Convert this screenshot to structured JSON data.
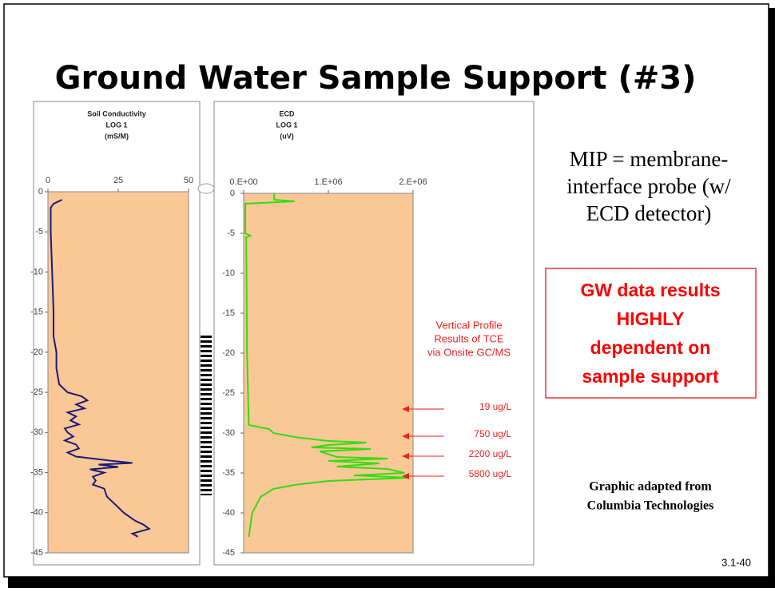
{
  "title": "Ground Water Sample Support (#3)",
  "mip_text": [
    "MIP = membrane-",
    "interface probe  (w/",
    "ECD detector)"
  ],
  "callout": [
    "GW data results",
    "HIGHLY",
    "dependent on",
    "sample support"
  ],
  "credit": [
    "Graphic adapted from",
    "Columbia Technologies"
  ],
  "slide_number": "3.1-40",
  "chart_data": [
    {
      "type": "line",
      "title_lines": [
        "Soil Conductivity",
        "LOG 1",
        "(mS/M)"
      ],
      "color": "#1a1a7a",
      "background": "#fac896",
      "xlim": [
        0,
        50
      ],
      "xticks": [
        0,
        25,
        50
      ],
      "ylim": [
        -45,
        0
      ],
      "yticks": [
        0,
        -5,
        -10,
        -15,
        -20,
        -25,
        -30,
        -35,
        -40,
        -45
      ],
      "x": [
        5,
        2,
        1,
        1,
        1.5,
        2,
        2,
        3,
        3,
        4,
        7,
        12,
        14,
        10,
        13,
        7,
        10,
        8,
        11,
        6,
        7,
        9,
        6,
        10,
        11,
        7,
        10,
        22,
        30,
        18,
        25,
        15,
        20,
        16,
        17,
        16,
        20,
        21,
        24,
        27,
        31,
        34,
        36,
        33,
        30,
        32
      ],
      "values": [
        -1,
        -1.5,
        -2,
        -5,
        -10,
        -15,
        -18,
        -20,
        -22,
        -24,
        -25,
        -25.5,
        -26,
        -26.5,
        -27,
        -27.5,
        -28,
        -28.5,
        -29,
        -29.5,
        -30,
        -30.5,
        -31,
        -31.5,
        -32,
        -32.5,
        -33,
        -33.5,
        -33.8,
        -34,
        -34.3,
        -34.6,
        -35,
        -35.5,
        -36,
        -36.5,
        -37,
        -38,
        -39,
        -40,
        -41,
        -41.5,
        -42,
        -42.3,
        -42.6,
        -43
      ]
    },
    {
      "type": "line",
      "title_lines": [
        "ECD",
        "LOG 1",
        "(uV)"
      ],
      "color": "#33dd11",
      "background": "#fac896",
      "xlim": [
        0,
        2000000
      ],
      "xticks": [
        {
          "value": 0,
          "label": "0.E+00"
        },
        {
          "value": 1000000,
          "label": "1.E+06"
        },
        {
          "value": 2000000,
          "label": "2.E+06"
        }
      ],
      "ylim": [
        -45,
        0
      ],
      "yticks": [
        0,
        -5,
        -10,
        -15,
        -20,
        -25,
        -30,
        -35,
        -40,
        -45
      ],
      "x": [
        360000,
        360000,
        600000,
        20000,
        20000,
        80000,
        30000,
        40000,
        60000,
        300000,
        350000,
        600000,
        1000000,
        1450000,
        1000000,
        800000,
        1500000,
        900000,
        1100000,
        1700000,
        1000000,
        1600000,
        1100000,
        1700000,
        1900000,
        1300000,
        1950000,
        1000000,
        600000,
        350000,
        200000,
        100000,
        60000
      ],
      "values": [
        0,
        -0.8,
        -1,
        -1.3,
        -5,
        -5.3,
        -5.5,
        -20,
        -29,
        -29.5,
        -30,
        -30.5,
        -31,
        -31.2,
        -31.5,
        -31.8,
        -32,
        -32.3,
        -33,
        -33.2,
        -33.5,
        -33.8,
        -34.2,
        -34.5,
        -35,
        -35.3,
        -35.6,
        -36,
        -36.5,
        -37,
        -38,
        -40,
        -43
      ],
      "annotation": [
        "Vertical Profile",
        "Results of TCE",
        "via Onsite GC/MS"
      ],
      "arrows": [
        {
          "label": "19 ug/L",
          "depth": -27
        },
        {
          "label": "750 ug/L",
          "depth": -30.4
        },
        {
          "label": "2200 ug/L",
          "depth": -32.9
        },
        {
          "label": "5800 ug/L",
          "depth": -35.4
        }
      ]
    }
  ]
}
